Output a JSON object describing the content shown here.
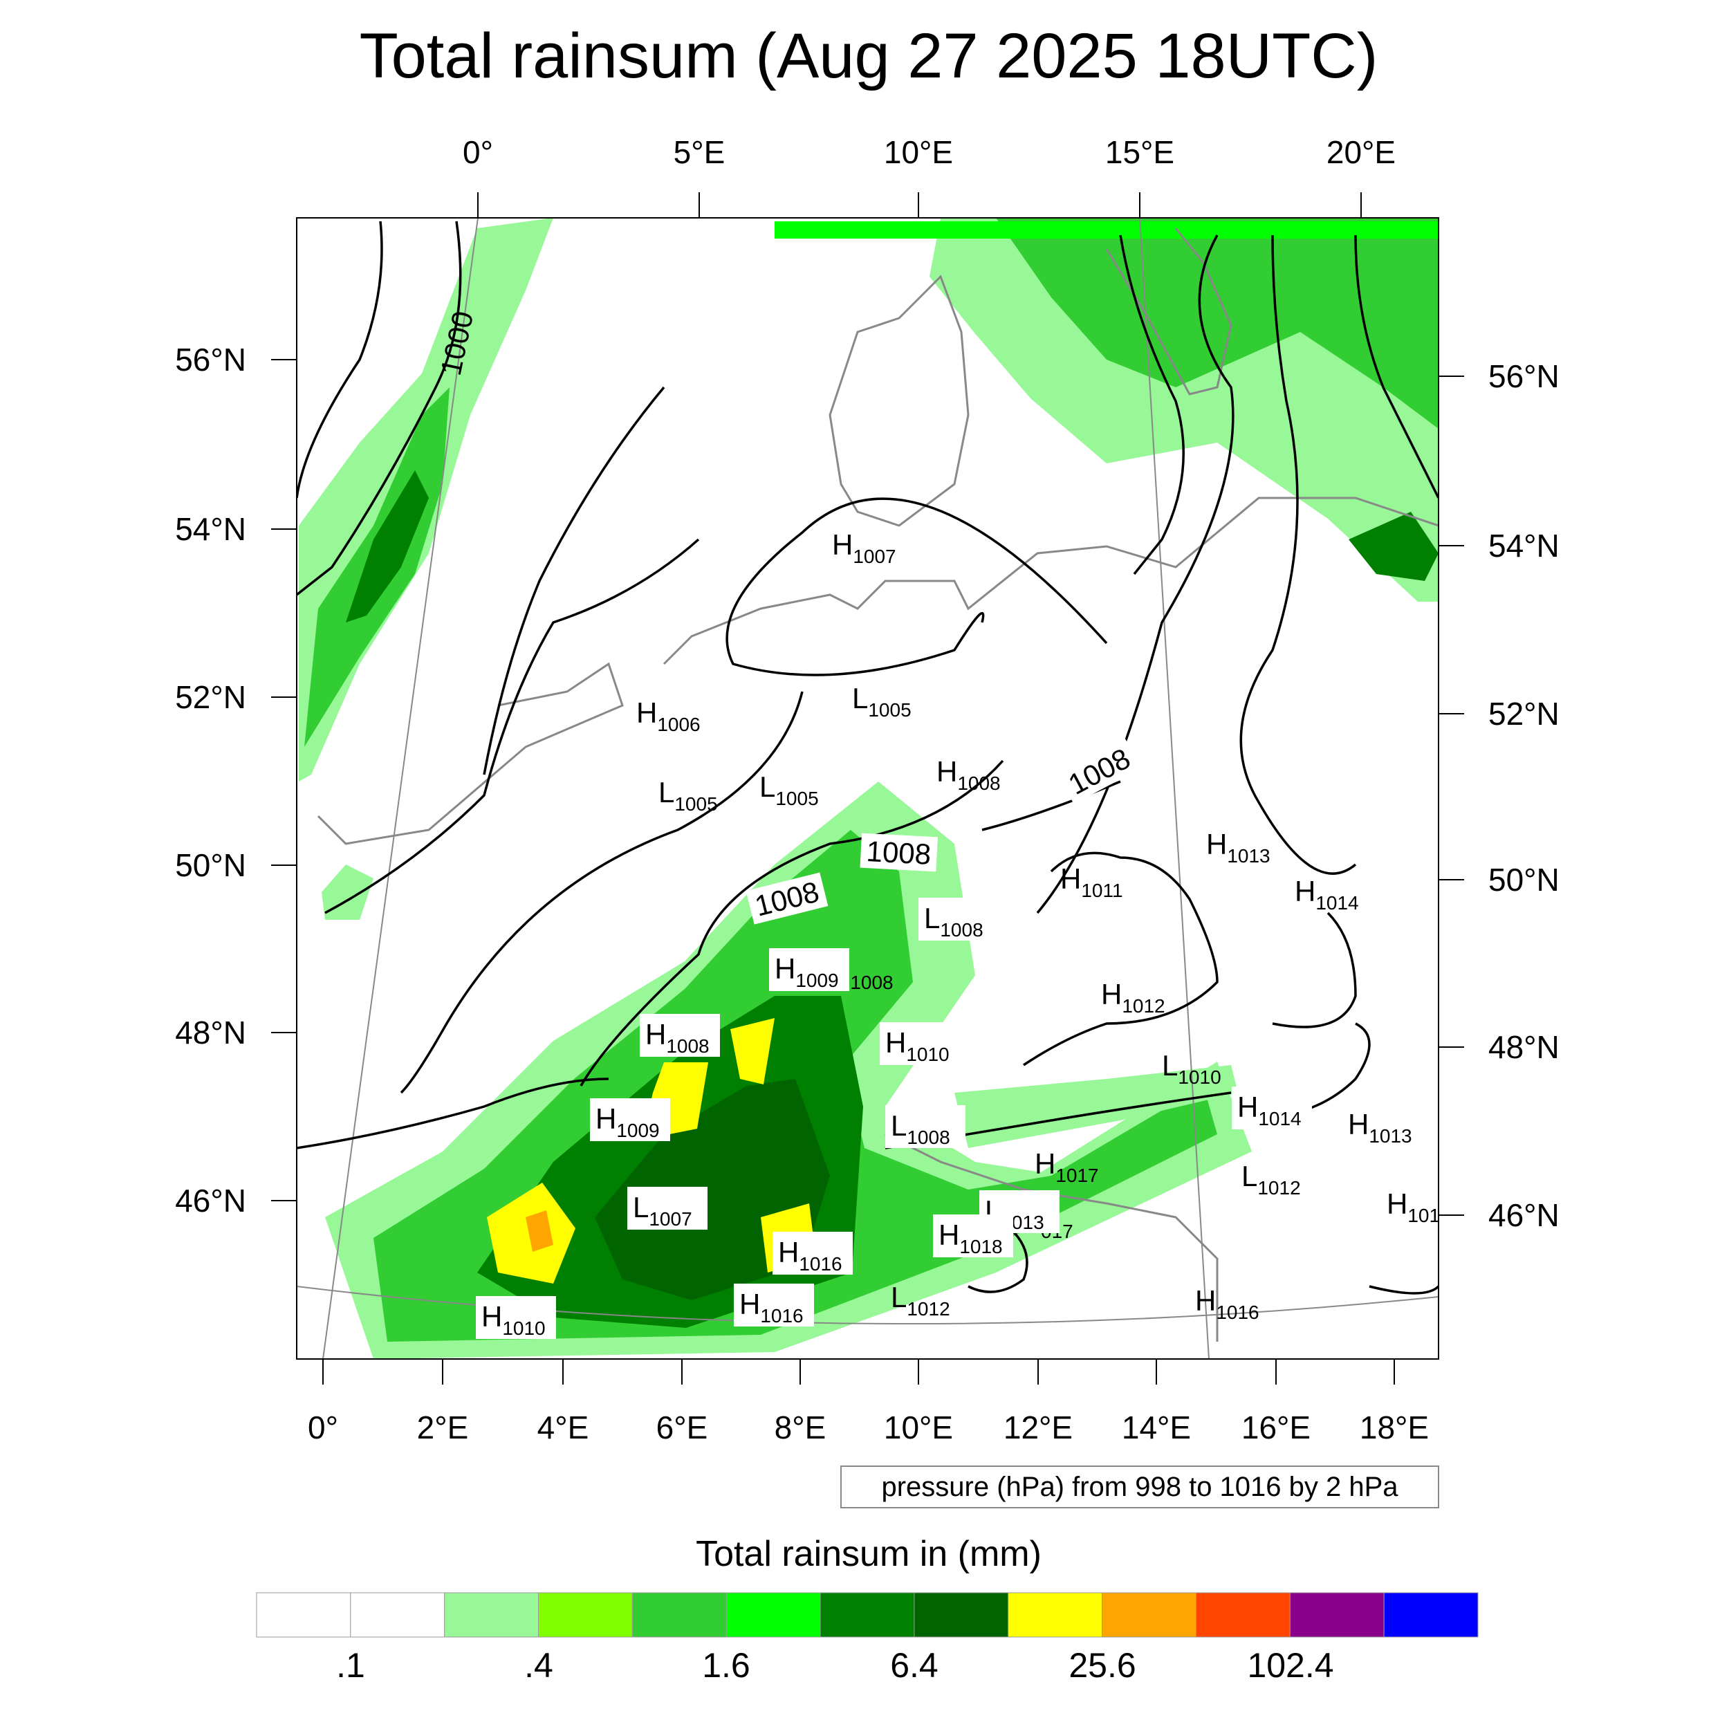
{
  "title": "Total rainsum (Aug 27 2025 18UTC)",
  "top_lon_labels": [
    "0°",
    "5°E",
    "10°E",
    "15°E",
    "20°E"
  ],
  "bottom_lon_labels": [
    "0°",
    "2°E",
    "4°E",
    "6°E",
    "8°E",
    "10°E",
    "12°E",
    "14°E",
    "16°E",
    "18°E"
  ],
  "left_lat_labels": [
    "56°N",
    "54°N",
    "52°N",
    "50°N",
    "48°N",
    "46°N"
  ],
  "right_lat_labels": [
    "56°N",
    "54°N",
    "52°N",
    "50°N",
    "48°N",
    "46°N"
  ],
  "contour_info": "pressure (hPa) from 998 to 1016 by 2 hPa",
  "contour_line_labels": [
    "1000",
    "1008",
    "1008",
    "1008",
    "-1008",
    "017"
  ],
  "pressure_centers": [
    {
      "t": "H",
      "v": "1007"
    },
    {
      "t": "H",
      "v": "1006"
    },
    {
      "t": "L",
      "v": "1005"
    },
    {
      "t": "L",
      "v": "1005"
    },
    {
      "t": "L",
      "v": "1005"
    },
    {
      "t": "H",
      "v": "1008"
    },
    {
      "t": "H",
      "v": "1011"
    },
    {
      "t": "H",
      "v": "1013"
    },
    {
      "t": "H",
      "v": "1014"
    },
    {
      "t": "L",
      "v": "1008"
    },
    {
      "t": "H",
      "v": "1009"
    },
    {
      "t": "H",
      "v": "1012"
    },
    {
      "t": "H",
      "v": "1008"
    },
    {
      "t": "H",
      "v": "1010"
    },
    {
      "t": "L",
      "v": "1010"
    },
    {
      "t": "H",
      "v": "1014"
    },
    {
      "t": "H",
      "v": "1013"
    },
    {
      "t": "H",
      "v": "1009"
    },
    {
      "t": "L",
      "v": "1008"
    },
    {
      "t": "H",
      "v": "1017"
    },
    {
      "t": "L",
      "v": "1012"
    },
    {
      "t": "H",
      "v": "101"
    },
    {
      "t": "L",
      "v": "1007"
    },
    {
      "t": "L",
      "v": "1013"
    },
    {
      "t": "H",
      "v": "1018"
    },
    {
      "t": "H",
      "v": "1016"
    },
    {
      "t": "H",
      "v": "1010"
    },
    {
      "t": "H",
      "v": "1016"
    },
    {
      "t": "L",
      "v": "1012"
    },
    {
      "t": "H",
      "v": "1016"
    }
  ],
  "colorbar": {
    "title": "Total rainsum in (mm)",
    "colors": [
      "#ffffff",
      "#ffffff",
      "#98f898",
      "#80ff00",
      "#32cd32",
      "#00ff00",
      "#008000",
      "#006400",
      "#ffff00",
      "#ffa500",
      "#ff4500",
      "#8b008b",
      "#0000ff"
    ],
    "labels": [
      ".1",
      ".4",
      "1.6",
      "6.4",
      "25.6",
      "102.4"
    ]
  }
}
